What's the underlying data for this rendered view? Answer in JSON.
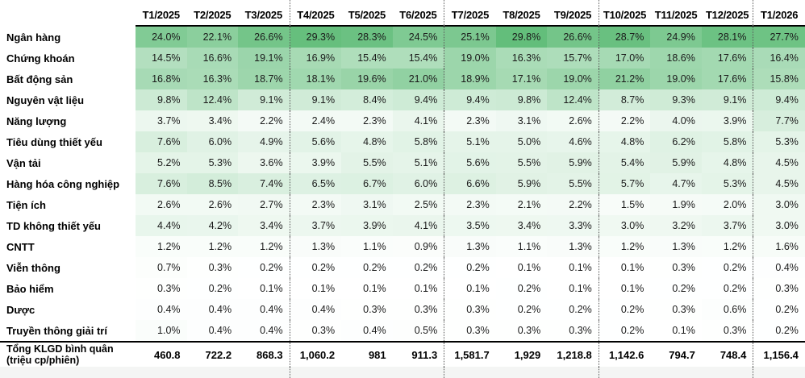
{
  "heatmap": {
    "min_value": 0.1,
    "max_value": 29.8,
    "min_color": "#FFFFFF",
    "max_color": "#63BE7B"
  },
  "chart_data": {
    "type": "heatmap",
    "title": "",
    "value_unit": "%",
    "x": [
      "T1/2025",
      "T2/2025",
      "T3/2025",
      "T4/2025",
      "T5/2025",
      "T6/2025",
      "T7/2025",
      "T8/2025",
      "T9/2025",
      "T10/2025",
      "T11/2025",
      "T12/2025",
      "T1/2026"
    ],
    "series": [
      {
        "name": "Ngân hàng",
        "values": [
          24.0,
          22.1,
          26.6,
          29.3,
          28.3,
          24.5,
          25.1,
          29.8,
          26.6,
          28.7,
          24.9,
          28.1,
          27.7
        ]
      },
      {
        "name": "Chứng khoán",
        "values": [
          14.5,
          16.6,
          19.1,
          16.9,
          15.4,
          15.4,
          19.0,
          16.3,
          15.7,
          17.0,
          18.6,
          17.6,
          16.4
        ]
      },
      {
        "name": "Bất động sản",
        "values": [
          16.8,
          16.3,
          18.7,
          18.1,
          19.6,
          21.0,
          18.9,
          17.1,
          19.0,
          21.2,
          19.0,
          17.6,
          15.8
        ]
      },
      {
        "name": "Nguyên vật liệu",
        "values": [
          9.8,
          12.4,
          9.1,
          9.1,
          8.4,
          9.4,
          9.4,
          9.8,
          12.4,
          8.7,
          9.3,
          9.1,
          9.4
        ]
      },
      {
        "name": "Năng lượng",
        "values": [
          3.7,
          3.4,
          2.2,
          2.4,
          2.3,
          4.1,
          2.3,
          3.1,
          2.6,
          2.2,
          4.0,
          3.9,
          7.7
        ]
      },
      {
        "name": "Tiêu dùng thiết yếu",
        "values": [
          7.6,
          6.0,
          4.9,
          5.6,
          4.8,
          5.8,
          5.1,
          5.0,
          4.6,
          4.8,
          6.2,
          5.8,
          5.3
        ]
      },
      {
        "name": "Vận tải",
        "values": [
          5.2,
          5.3,
          3.6,
          3.9,
          5.5,
          5.1,
          5.6,
          5.5,
          5.9,
          5.4,
          5.9,
          4.8,
          4.5
        ]
      },
      {
        "name": "Hàng hóa công nghiệp",
        "values": [
          7.6,
          8.5,
          7.4,
          6.5,
          6.7,
          6.0,
          6.6,
          5.9,
          5.5,
          5.7,
          4.7,
          5.3,
          4.5
        ]
      },
      {
        "name": "Tiện ích",
        "values": [
          2.6,
          2.6,
          2.7,
          2.3,
          3.1,
          2.5,
          2.3,
          2.1,
          2.2,
          1.5,
          1.9,
          2.0,
          3.0
        ]
      },
      {
        "name": "TD không thiết yếu",
        "values": [
          4.4,
          4.2,
          3.4,
          3.7,
          3.9,
          4.1,
          3.5,
          3.4,
          3.3,
          3.0,
          3.2,
          3.7,
          3.0
        ]
      },
      {
        "name": "CNTT",
        "values": [
          1.2,
          1.2,
          1.2,
          1.3,
          1.1,
          0.9,
          1.3,
          1.1,
          1.3,
          1.2,
          1.3,
          1.2,
          1.6
        ]
      },
      {
        "name": "Viễn thông",
        "values": [
          0.7,
          0.3,
          0.2,
          0.2,
          0.2,
          0.2,
          0.2,
          0.1,
          0.1,
          0.1,
          0.3,
          0.2,
          0.4
        ]
      },
      {
        "name": "Bảo hiểm",
        "values": [
          0.3,
          0.2,
          0.1,
          0.1,
          0.1,
          0.1,
          0.1,
          0.2,
          0.1,
          0.1,
          0.2,
          0.2,
          0.3
        ]
      },
      {
        "name": "Dược",
        "values": [
          0.4,
          0.4,
          0.4,
          0.4,
          0.3,
          0.3,
          0.3,
          0.2,
          0.2,
          0.2,
          0.3,
          0.6,
          0.2
        ]
      },
      {
        "name": "Truyền thông giải trí",
        "values": [
          1.0,
          0.4,
          0.4,
          0.3,
          0.4,
          0.5,
          0.3,
          0.3,
          0.3,
          0.2,
          0.1,
          0.3,
          0.2
        ]
      }
    ],
    "totals_row": {
      "label_line1": "Tổng KLGD bình quân",
      "label_line2": "(triệu cp/phiên)",
      "values": [
        "460.8",
        "722.2",
        "868.3",
        "1,060.2",
        "981",
        "911.3",
        "1,581.7",
        "1,929",
        "1,218.8",
        "1,142.6",
        "794.7",
        "748.4",
        "1,156.4"
      ]
    },
    "layout": {
      "legend": "none",
      "grid": "off",
      "quarter_separator_after_indexes": [
        2,
        5,
        8,
        11
      ],
      "color_scale": {
        "low": "#FFFFFF",
        "high": "#63BE7B"
      }
    }
  }
}
